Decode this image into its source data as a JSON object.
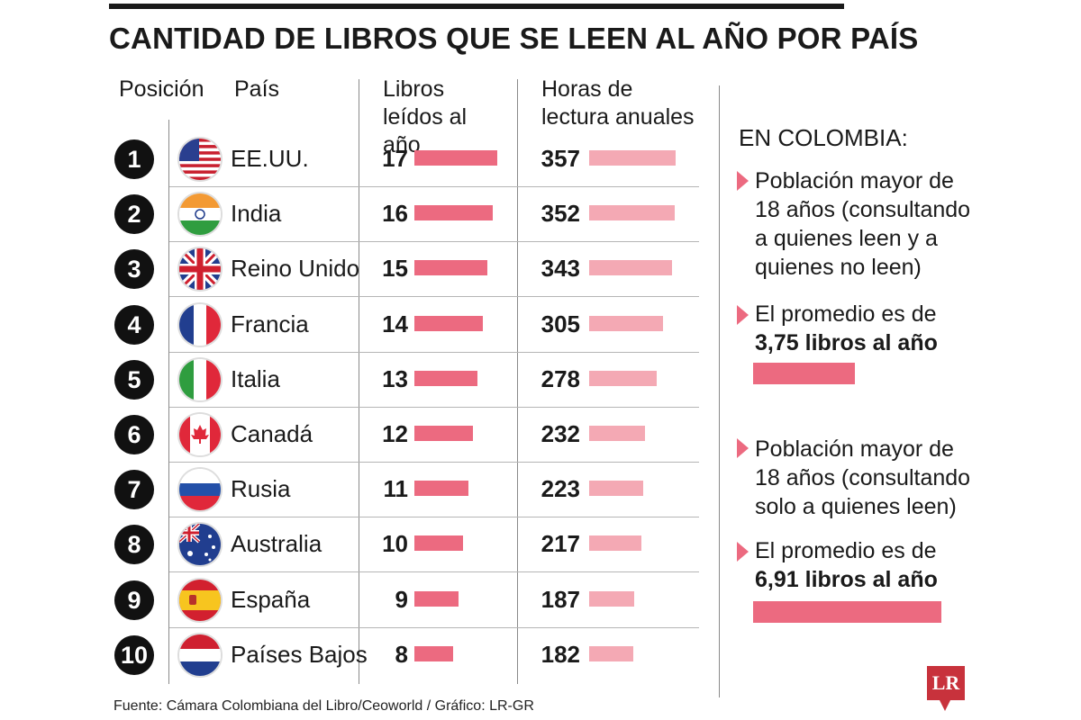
{
  "title": "CANTIDAD DE LIBROS QUE SE LEEN AL AÑO POR PAÍS",
  "headers": {
    "position": "Posición",
    "country": "País",
    "books": "Libros leídos al año",
    "hours": "Horas de lectura anuales"
  },
  "colors": {
    "books_bar": "#ec6a80",
    "hours_bar": "#f4a9b4",
    "accent": "#c8323c"
  },
  "chart_data": {
    "type": "table",
    "columns": [
      "Posición",
      "País",
      "Libros leídos al año",
      "Horas de lectura anuales"
    ],
    "rows": [
      {
        "pos": "1",
        "country": "EE.UU.",
        "books": 17,
        "hours": 357,
        "flag": "usa-flag-icon"
      },
      {
        "pos": "2",
        "country": "India",
        "books": 16,
        "hours": 352,
        "flag": "india-flag-icon"
      },
      {
        "pos": "3",
        "country": "Reino Unido",
        "books": 15,
        "hours": 343,
        "flag": "uk-flag-icon"
      },
      {
        "pos": "4",
        "country": "Francia",
        "books": 14,
        "hours": 305,
        "flag": "france-flag-icon"
      },
      {
        "pos": "5",
        "country": "Italia",
        "books": 13,
        "hours": 278,
        "flag": "italy-flag-icon"
      },
      {
        "pos": "6",
        "country": "Canadá",
        "books": 12,
        "hours": 232,
        "flag": "canada-flag-icon"
      },
      {
        "pos": "7",
        "country": "Rusia",
        "books": 11,
        "hours": 223,
        "flag": "russia-flag-icon"
      },
      {
        "pos": "8",
        "country": "Australia",
        "books": 10,
        "hours": 217,
        "flag": "australia-flag-icon"
      },
      {
        "pos": "9",
        "country": "España",
        "books": 9,
        "hours": 187,
        "flag": "spain-flag-icon"
      },
      {
        "pos": "10",
        "country": "Países Bajos",
        "books": 8,
        "hours": 182,
        "flag": "netherlands-flag-icon"
      }
    ]
  },
  "sidebar": {
    "heading": "EN COLOMBIA:",
    "blocks": [
      {
        "population_text": "Población mayor de 18 años (consultando a quienes leen y a quienes no leen)",
        "avg_prefix": "El promedio es de ",
        "avg_value": "3,75",
        "avg_suffix": "libros al año",
        "average": 3.75
      },
      {
        "population_text": "Población mayor de 18 años (consultando solo a quienes leen)",
        "avg_prefix": "El promedio es de ",
        "avg_value": "6,91",
        "avg_suffix": "libros al año",
        "average": 6.91
      }
    ]
  },
  "source": "Fuente: Cámara Colombiana del Libro/Ceoworld / Gráfico: LR-GR",
  "logo": "LR"
}
